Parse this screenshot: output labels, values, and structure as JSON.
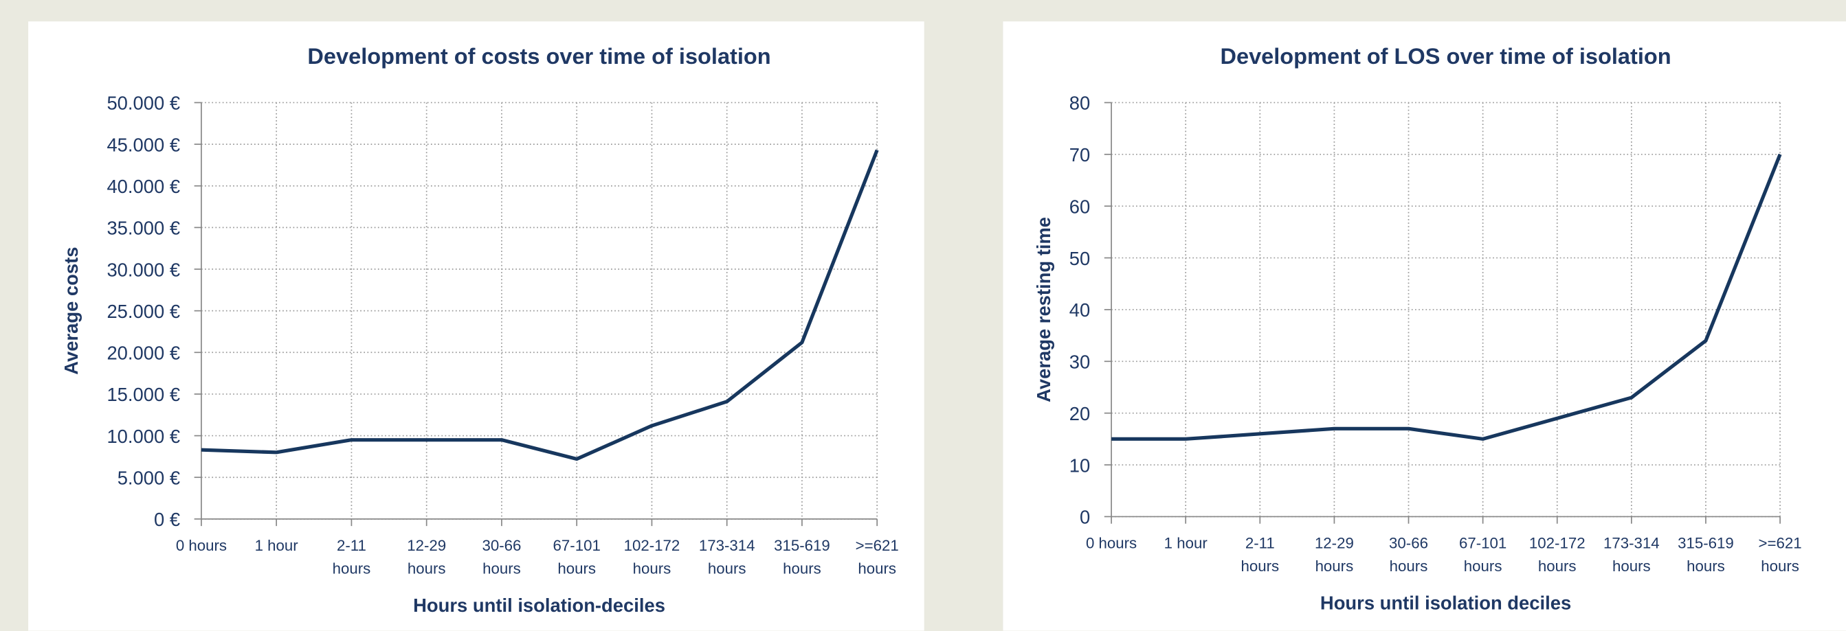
{
  "chart_data": [
    {
      "type": "line",
      "title": "Development of costs over time of isolation",
      "x_label": "Hours until isolation-deciles",
      "y_label": "Average costs",
      "categories": [
        "0 hours",
        "1 hour",
        "2-11\nhours",
        "12-29\nhours",
        "30-66\nhours",
        "67-101\nhours",
        "102-172\nhours",
        "173-314\nhours",
        "315-619\nhours",
        ">=621\nhours"
      ],
      "series": [
        {
          "name": "Average costs",
          "color": "#17375e",
          "values": [
            8300,
            8000,
            9500,
            9500,
            9500,
            7200,
            11200,
            14100,
            21200,
            44300
          ]
        }
      ],
      "ylim": [
        0,
        50000
      ],
      "yticks": [
        {
          "value": 0,
          "label": "0 €"
        },
        {
          "value": 5000,
          "label": "5.000 €"
        },
        {
          "value": 10000,
          "label": "10.000 €"
        },
        {
          "value": 15000,
          "label": "15.000 €"
        },
        {
          "value": 20000,
          "label": "20.000 €"
        },
        {
          "value": 25000,
          "label": "25.000 €"
        },
        {
          "value": 30000,
          "label": "30.000 €"
        },
        {
          "value": 35000,
          "label": "35.000 €"
        },
        {
          "value": 40000,
          "label": "40.000 €"
        },
        {
          "value": 45000,
          "label": "45.000 €"
        },
        {
          "value": 50000,
          "label": "50.000 €"
        }
      ],
      "grid": true
    },
    {
      "type": "line",
      "title": "Development of LOS over time of isolation",
      "x_label": "Hours until isolation deciles",
      "y_label": "Average resting time",
      "categories": [
        "0 hours",
        "1 hour",
        "2-11\nhours",
        "12-29\nhours",
        "30-66\nhours",
        "67-101\nhours",
        "102-172\nhours",
        "173-314\nhours",
        "315-619\nhours",
        ">=621\nhours"
      ],
      "series": [
        {
          "name": "Average resting time",
          "color": "#17375e",
          "values": [
            15,
            15,
            16,
            17,
            17,
            15,
            19,
            23,
            34,
            70
          ]
        }
      ],
      "ylim": [
        0,
        80
      ],
      "yticks": [
        0,
        10,
        20,
        30,
        40,
        50,
        60,
        70,
        80
      ],
      "grid": true
    }
  ]
}
